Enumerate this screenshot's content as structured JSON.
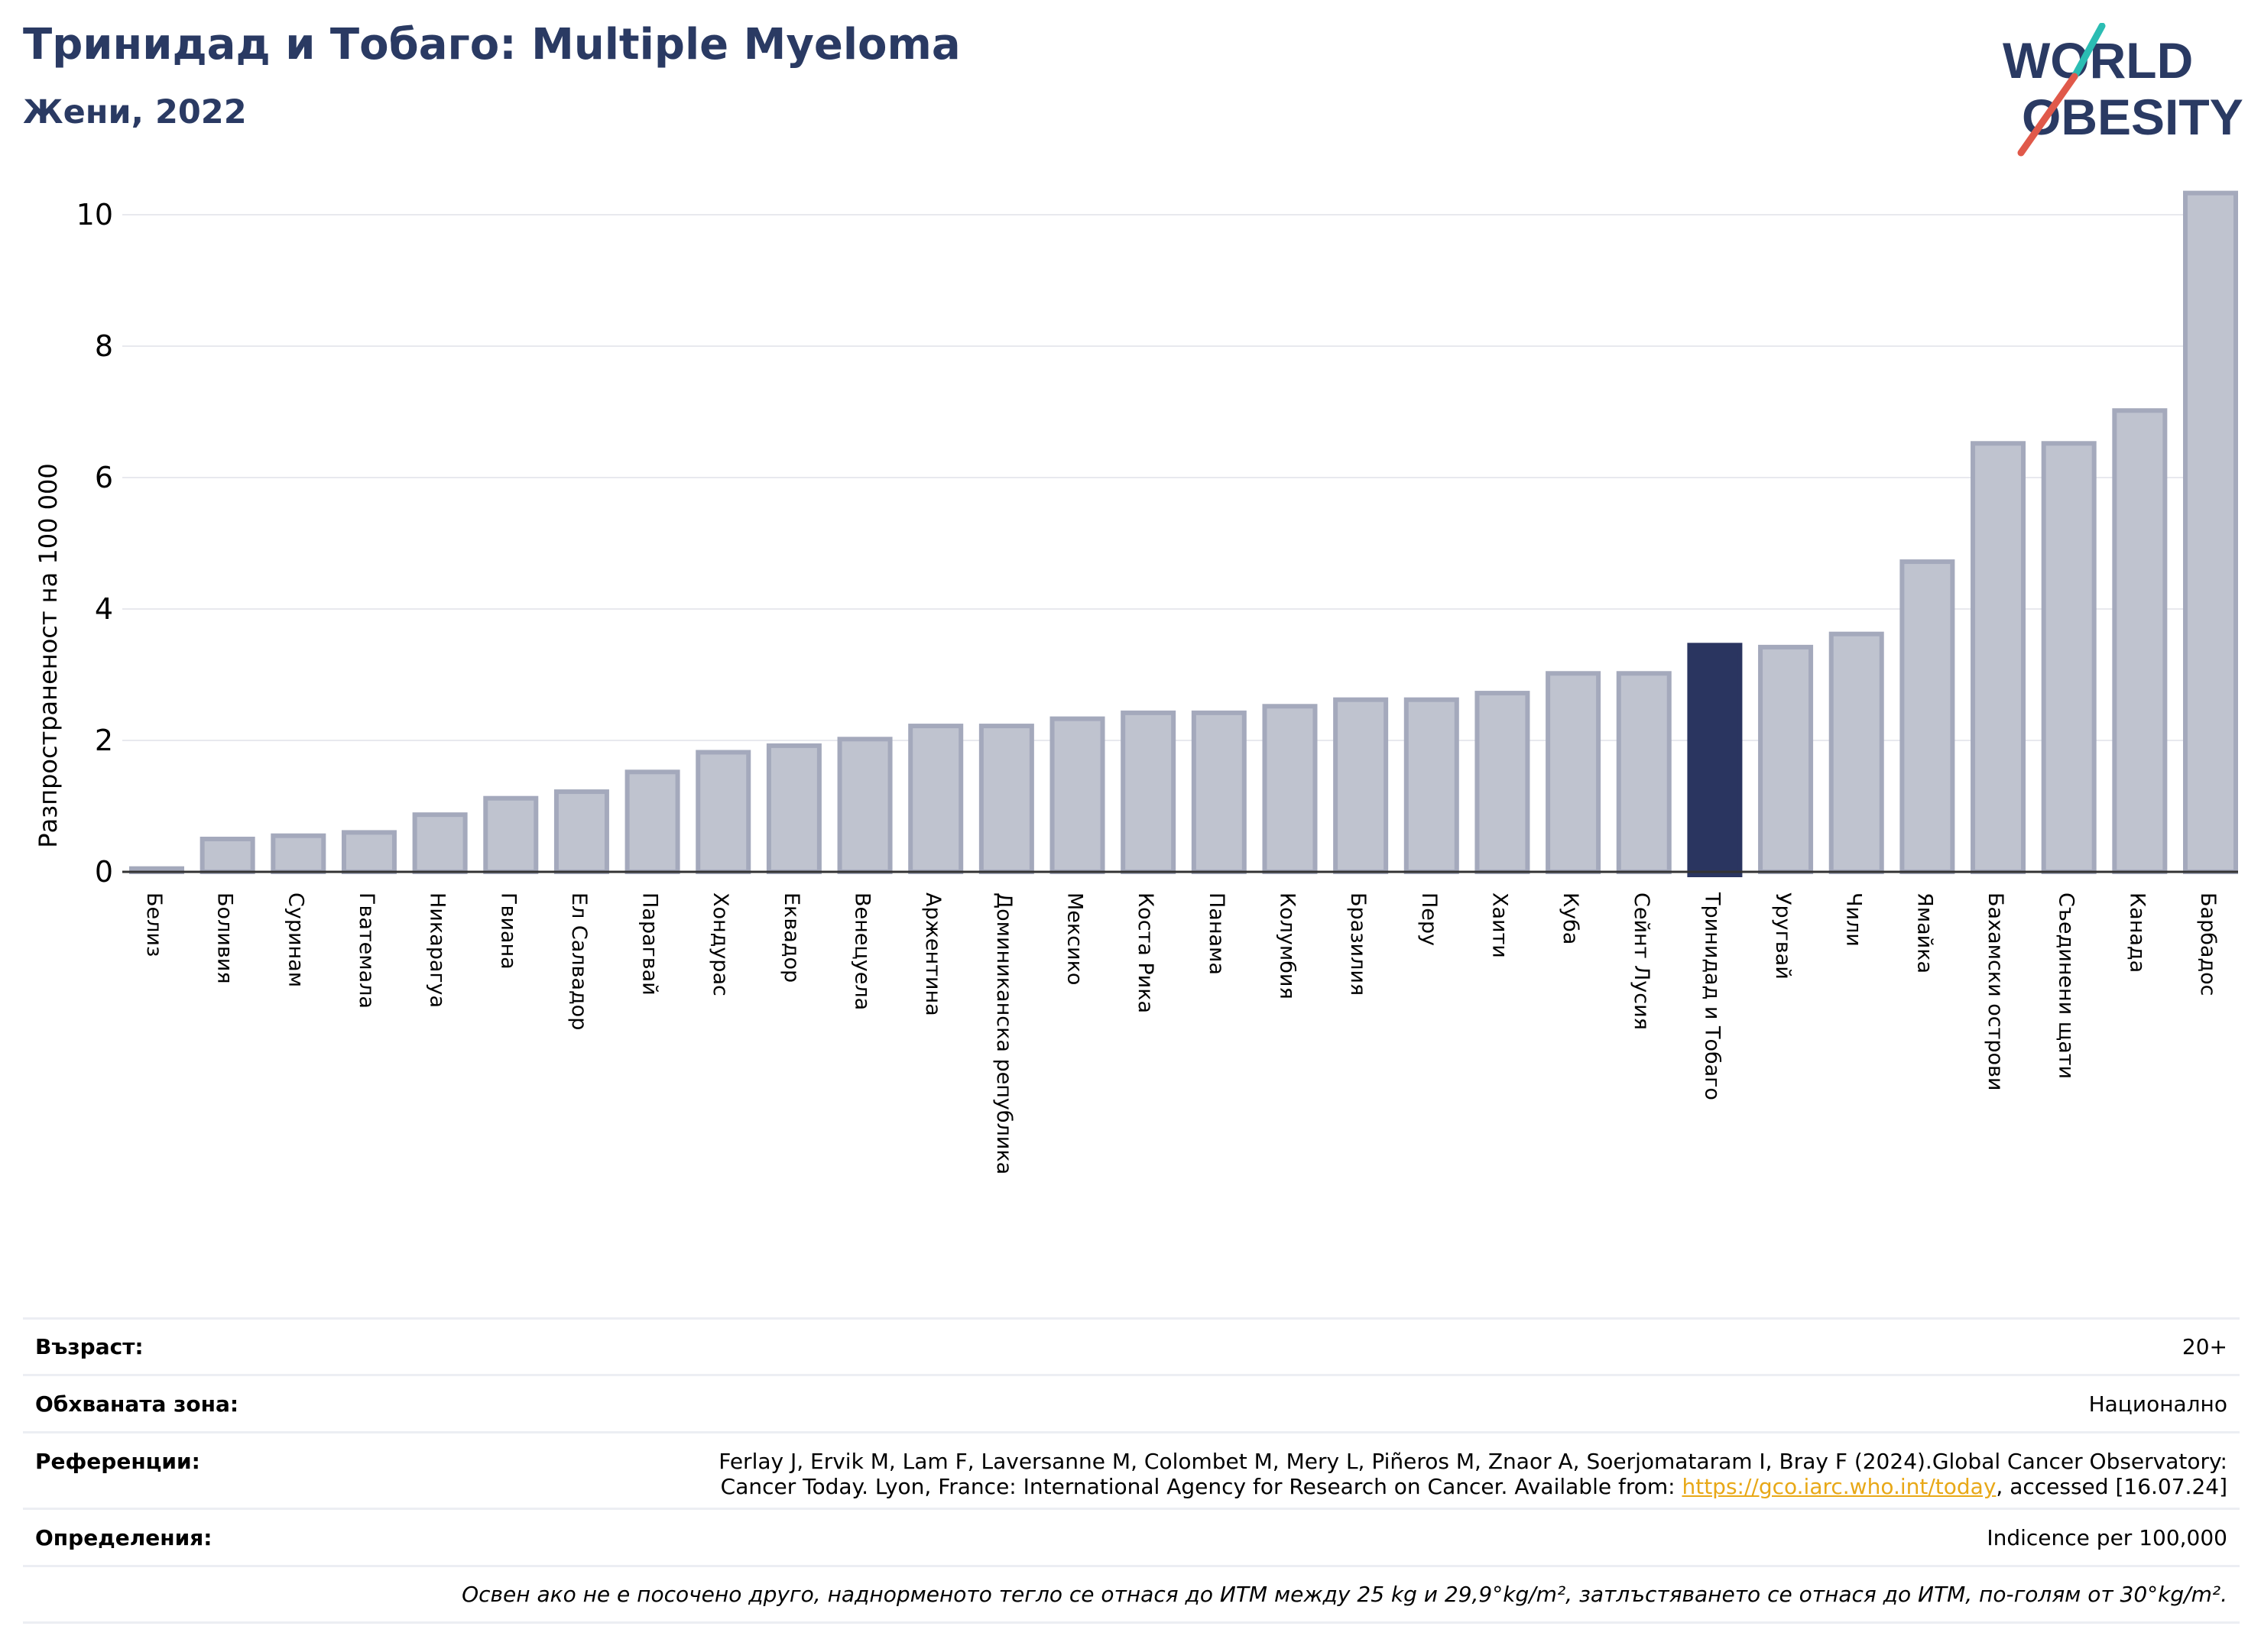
{
  "header": {
    "title": "Тринидад и Тобаго: Multiple Myeloma",
    "subtitle": "Жени, 2022"
  },
  "logo": {
    "line1": "WORLD",
    "line2": "OBESITY",
    "colors": {
      "text": "#2a3a63",
      "slash_teal": "#2bbdb3",
      "slash_red": "#e0594a"
    }
  },
  "colors": {
    "bar_fill": "#bfc3cf",
    "bar_edge": "#a4a9bc",
    "highlight": "#2a3560",
    "grid": "#e8e9ee",
    "axis": "#333333",
    "link": "#e8a817"
  },
  "chart_data": {
    "type": "bar",
    "title": "Тринидад и Тобаго: Multiple Myeloma",
    "ylabel": "Разпространеност  на 100 000",
    "xlabel": "",
    "ylim": [
      0,
      10.5
    ],
    "yticks": [
      0,
      2,
      4,
      6,
      8,
      10
    ],
    "grid": true,
    "highlight_category": "Тринидад и Тобаго",
    "categories": [
      "Белиз",
      "Боливия",
      "Суринам",
      "Гватемала",
      "Никарагуа",
      "Гвиана",
      "Ел Салвадор",
      "Парагвай",
      "Хондурас",
      "Еквадор",
      "Венецуела",
      "Аржентина",
      "Доминиканска република",
      "Мексико",
      "Коста Рика",
      "Панама",
      "Колумбия",
      "Бразилия",
      "Перу",
      "Хаити",
      "Куба",
      "Сейнт Лусия",
      "Тринидад и Тобаго",
      "Уругвай",
      "Чили",
      "Ямайка",
      "Бахамски острови",
      "Съединени щати",
      "Канада",
      "Барбадос"
    ],
    "values": [
      0.05,
      0.5,
      0.55,
      0.6,
      0.87,
      1.12,
      1.22,
      1.52,
      1.82,
      1.92,
      2.02,
      2.22,
      2.22,
      2.33,
      2.42,
      2.42,
      2.52,
      2.62,
      2.62,
      2.72,
      3.02,
      3.02,
      3.45,
      3.42,
      3.62,
      4.72,
      6.52,
      6.52,
      7.02,
      10.33
    ]
  },
  "info": {
    "age_label": "Възраст:",
    "age_value": "20+",
    "coverage_label": "Обхваната зона:",
    "coverage_value": "Национално",
    "references_label": "Референции:",
    "references_line1": "Ferlay J, Ervik M, Lam F, Laversanne M, Colombet M, Mery L, Piñeros M, Znaor A, Soerjomataram I, Bray F (2024).Global Cancer Observatory:",
    "references_line2_pre": "Cancer Today. Lyon, France: International Agency for Research on Cancer. Available from: ",
    "references_link": "https://gco.iarc.who.int/today",
    "references_line2_post": ", accessed [16.07.24]",
    "definitions_label": "Определения:",
    "definitions_value": "Indicence per 100,000",
    "footnote": "Освен ако не е посочено друго, наднорменото тегло се отнася до ИТМ между 25 kg и 29,9°kg/m², затлъстяването се отнася до ИТМ, по-голям от 30°kg/m²."
  }
}
